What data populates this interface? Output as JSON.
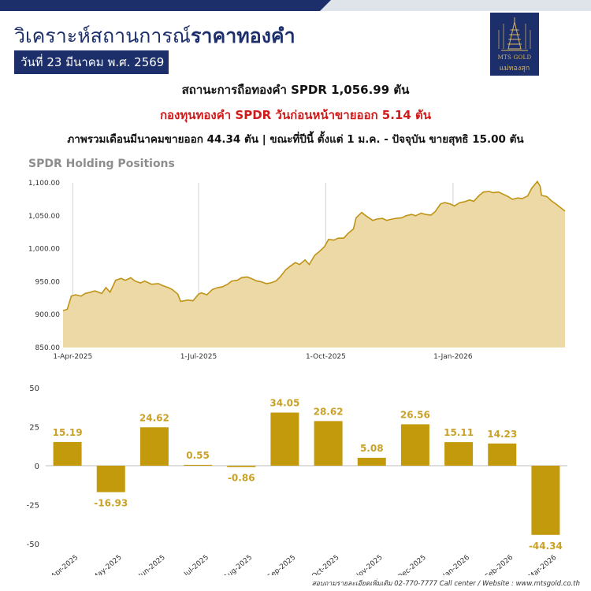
{
  "header": {
    "title_light": "วิเคราะห์สถานการณ์",
    "title_bold": "ราคาทองคำ",
    "date": "วันที่ 23 มีนาคม พ.ศ. 2569",
    "logo_text_en": "MTS GOLD",
    "logo_text_th": "แม่ทองสุก"
  },
  "summary": {
    "line1": "สถานะการถือทองคำ  SPDR 1,056.99 ตัน",
    "line2": "กองทุนทองคำ  SPDR วันก่อนหน้าขายออก  5.14 ตัน",
    "line3": "ภาพรวมเดือนมีนาคมขายออก   44.34 ตัน | ขณะที่ปีนี้  ตั้งแต่ 1 ม.ค. - ปัจจุบัน  ขายสุทธิ  15.00 ตัน"
  },
  "footer": "สอบถามรายละเอียดเพิ่มเติม 02-770-7777 Call center / Website : www.mtsgold.co.th",
  "colors": {
    "navy": "#1c2f6b",
    "gold": "#c49a0d",
    "area_fill": "#ecd9a5",
    "area_line": "#bf9416",
    "negative_headline": "#d11a1a"
  },
  "chart_data": [
    {
      "type": "area",
      "title": "SPDR Holding Positions",
      "ylim": [
        850,
        1100
      ],
      "y_ticks": [
        "1,100.00",
        "1,050.00",
        "1,000.00",
        "950.00",
        "900.00",
        "850.00"
      ],
      "x_ticks": [
        "1-Apr-2025",
        "1-Jul-2025",
        "1-Oct-2025",
        "1-Jan-2026"
      ],
      "grid": "vertical-at-ticks",
      "x_range": [
        "2025-03-25",
        "2026-03-23"
      ],
      "points": [
        [
          "2025-03-25",
          906
        ],
        [
          "2025-03-28",
          908
        ],
        [
          "2025-03-31",
          928
        ],
        [
          "2025-04-03",
          930
        ],
        [
          "2025-04-07",
          928
        ],
        [
          "2025-04-10",
          932
        ],
        [
          "2025-04-14",
          934
        ],
        [
          "2025-04-17",
          936
        ],
        [
          "2025-04-22",
          932
        ],
        [
          "2025-04-25",
          941
        ],
        [
          "2025-04-28",
          934
        ],
        [
          "2025-05-02",
          952
        ],
        [
          "2025-05-06",
          955
        ],
        [
          "2025-05-09",
          952
        ],
        [
          "2025-05-13",
          956
        ],
        [
          "2025-05-16",
          951
        ],
        [
          "2025-05-20",
          948
        ],
        [
          "2025-05-23",
          951
        ],
        [
          "2025-05-28",
          946
        ],
        [
          "2025-06-02",
          947
        ],
        [
          "2025-06-05",
          944
        ],
        [
          "2025-06-09",
          941
        ],
        [
          "2025-06-12",
          938
        ],
        [
          "2025-06-16",
          931
        ],
        [
          "2025-06-18",
          920
        ],
        [
          "2025-06-23",
          922
        ],
        [
          "2025-06-27",
          921
        ],
        [
          "2025-07-01",
          931
        ],
        [
          "2025-07-03",
          933
        ],
        [
          "2025-07-07",
          930
        ],
        [
          "2025-07-11",
          938
        ],
        [
          "2025-07-15",
          941
        ],
        [
          "2025-07-18",
          942
        ],
        [
          "2025-07-22",
          946
        ],
        [
          "2025-07-25",
          951
        ],
        [
          "2025-07-29",
          952
        ],
        [
          "2025-08-01",
          956
        ],
        [
          "2025-08-05",
          957
        ],
        [
          "2025-08-08",
          955
        ],
        [
          "2025-08-12",
          951
        ],
        [
          "2025-08-15",
          950
        ],
        [
          "2025-08-19",
          947
        ],
        [
          "2025-08-22",
          948
        ],
        [
          "2025-08-26",
          951
        ],
        [
          "2025-08-29",
          957
        ],
        [
          "2025-09-02",
          968
        ],
        [
          "2025-09-05",
          973
        ],
        [
          "2025-09-09",
          979
        ],
        [
          "2025-09-12",
          976
        ],
        [
          "2025-09-16",
          983
        ],
        [
          "2025-09-19",
          976
        ],
        [
          "2025-09-23",
          990
        ],
        [
          "2025-09-26",
          995
        ],
        [
          "2025-09-30",
          1003
        ],
        [
          "2025-10-03",
          1014
        ],
        [
          "2025-10-07",
          1013
        ],
        [
          "2025-10-10",
          1016
        ],
        [
          "2025-10-14",
          1016
        ],
        [
          "2025-10-17",
          1023
        ],
        [
          "2025-10-21",
          1030
        ],
        [
          "2025-10-23",
          1047
        ],
        [
          "2025-10-27",
          1055
        ],
        [
          "2025-10-30",
          1050
        ],
        [
          "2025-11-04",
          1043
        ],
        [
          "2025-11-07",
          1045
        ],
        [
          "2025-11-11",
          1046
        ],
        [
          "2025-11-14",
          1043
        ],
        [
          "2025-11-18",
          1045
        ],
        [
          "2025-11-21",
          1046
        ],
        [
          "2025-11-25",
          1047
        ],
        [
          "2025-11-28",
          1050
        ],
        [
          "2025-12-02",
          1052
        ],
        [
          "2025-12-05",
          1050
        ],
        [
          "2025-12-09",
          1054
        ],
        [
          "2025-12-12",
          1052
        ],
        [
          "2025-12-16",
          1051
        ],
        [
          "2025-12-19",
          1056
        ],
        [
          "2025-12-23",
          1068
        ],
        [
          "2025-12-26",
          1070
        ],
        [
          "2025-12-30",
          1068
        ],
        [
          "2026-01-02",
          1065
        ],
        [
          "2026-01-06",
          1070
        ],
        [
          "2026-01-09",
          1071
        ],
        [
          "2026-01-13",
          1074
        ],
        [
          "2026-01-16",
          1072
        ],
        [
          "2026-01-20",
          1081
        ],
        [
          "2026-01-23",
          1086
        ],
        [
          "2026-01-27",
          1087
        ],
        [
          "2026-01-30",
          1085
        ],
        [
          "2026-02-03",
          1086
        ],
        [
          "2026-02-06",
          1083
        ],
        [
          "2026-02-10",
          1079
        ],
        [
          "2026-02-13",
          1075
        ],
        [
          "2026-02-17",
          1077
        ],
        [
          "2026-02-20",
          1076
        ],
        [
          "2026-02-24",
          1080
        ],
        [
          "2026-02-27",
          1092
        ],
        [
          "2026-03-03",
          1102
        ],
        [
          "2026-03-05",
          1095
        ],
        [
          "2026-03-06",
          1081
        ],
        [
          "2026-03-10",
          1079
        ],
        [
          "2026-03-13",
          1073
        ],
        [
          "2026-03-17",
          1067
        ],
        [
          "2026-03-20",
          1062
        ],
        [
          "2026-03-23",
          1057
        ]
      ]
    },
    {
      "type": "bar",
      "categories": [
        "Apr-2025",
        "May-2025",
        "Jun-2025",
        "Jul-2025",
        "Aug-2025",
        "Sep-2025",
        "Oct-2025",
        "Nov-2025",
        "Dec-2025",
        "Jan-2026",
        "Feb-2026",
        "Mar-2026"
      ],
      "values": [
        15.19,
        -16.93,
        24.62,
        0.55,
        -0.86,
        34.05,
        28.62,
        5.08,
        26.56,
        15.11,
        14.23,
        -44.34
      ],
      "data_labels": [
        "15.19",
        "-16.93",
        "24.62",
        "0.55",
        "-0.86",
        "34.05",
        "28.62",
        "5.08",
        "26.56",
        "15.11",
        "14.23",
        "-44.34"
      ],
      "ylim": [
        -50,
        50
      ],
      "y_ticks": [
        "50",
        "25",
        "0",
        "-25",
        "-50"
      ],
      "grid": false
    }
  ]
}
